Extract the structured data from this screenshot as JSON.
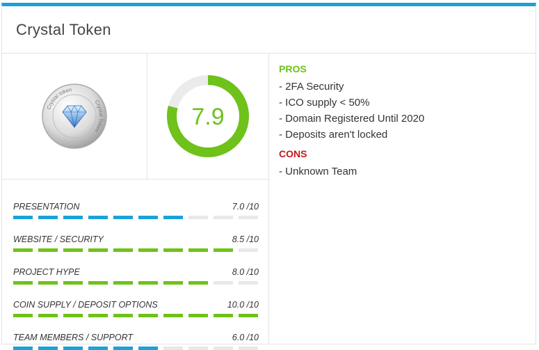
{
  "title": "Crystal Token",
  "coin": {
    "ring_text_top": "Crystal token",
    "ring_text_side": "Crystal Token"
  },
  "score": {
    "value": 7.9,
    "label": "7.9",
    "max": 10,
    "color": "#6ec21a",
    "track_color": "#ebebeb"
  },
  "ratings": [
    {
      "label": "PRESENTATION",
      "value": 7.0,
      "display": "7.0 /10",
      "color": "blue"
    },
    {
      "label": "WEBSITE / SECURITY",
      "value": 8.5,
      "display": "8.5 /10",
      "color": "green"
    },
    {
      "label": "PROJECT HYPE",
      "value": 8.0,
      "display": "8.0 /10",
      "color": "green"
    },
    {
      "label": "COIN SUPPLY / DEPOSIT OPTIONS",
      "value": 10.0,
      "display": "10.0 /10",
      "color": "green"
    },
    {
      "label": "TEAM MEMBERS / SUPPORT",
      "value": 6.0,
      "display": "6.0 /10",
      "color": "blue"
    }
  ],
  "pros": {
    "title": "PROS",
    "items": [
      "2FA Security",
      "ICO supply < 50%",
      "Domain Registered Until 2020",
      "Deposits aren't locked"
    ]
  },
  "cons": {
    "title": "CONS",
    "items": [
      "Unknown Team"
    ]
  },
  "colors": {
    "accent": "#1e9fd6",
    "bar_blue": "#1aa3d9",
    "bar_green": "#6ec21a",
    "pros": "#6ec21a",
    "cons": "#c21a1a"
  }
}
